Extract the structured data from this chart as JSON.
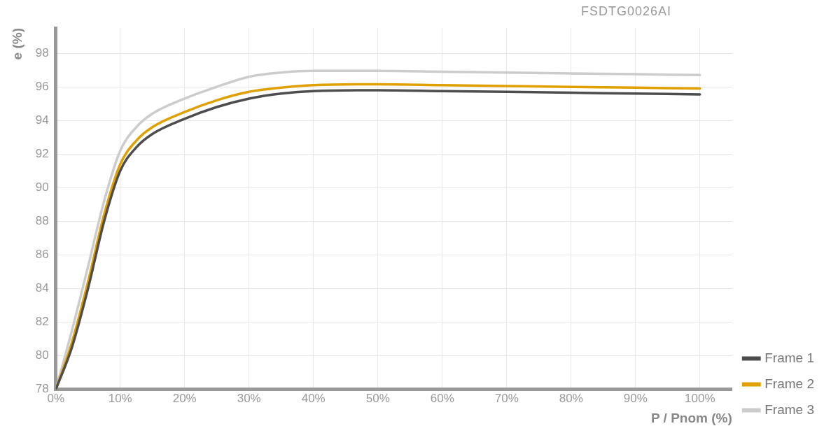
{
  "chart_data": {
    "type": "line",
    "xlabel": "P / Pnom (%)",
    "ylabel": "e (%)",
    "annotations": [
      "FSDTG0026AI"
    ],
    "xlim": [
      0,
      105
    ],
    "ylim": [
      78,
      99.5
    ],
    "xticks": [
      {
        "value": 0,
        "label": "0%"
      },
      {
        "value": 10,
        "label": "10%"
      },
      {
        "value": 20,
        "label": "20%"
      },
      {
        "value": 30,
        "label": "30%"
      },
      {
        "value": 40,
        "label": "40%"
      },
      {
        "value": 50,
        "label": "50%"
      },
      {
        "value": 60,
        "label": "60%"
      },
      {
        "value": 70,
        "label": "70%"
      },
      {
        "value": 80,
        "label": "80%"
      },
      {
        "value": 90,
        "label": "90%"
      },
      {
        "value": 100,
        "label": "100%"
      }
    ],
    "yticks": [
      78,
      80,
      82,
      84,
      86,
      88,
      90,
      92,
      94,
      96,
      98
    ],
    "grid": true,
    "legend": "right",
    "marker": "none",
    "line_style": "solid",
    "series": [
      {
        "name": "Frame 1",
        "color": "#4d4d4f",
        "x": [
          0,
          2.5,
          5,
          7.5,
          10,
          12.5,
          15,
          20,
          25,
          30,
          35,
          40,
          50,
          60,
          70,
          80,
          90,
          100
        ],
        "values": [
          78,
          80.5,
          84,
          88,
          91,
          92.4,
          93.2,
          94.1,
          94.8,
          95.3,
          95.6,
          95.75,
          95.8,
          95.75,
          95.7,
          95.65,
          95.6,
          95.55
        ]
      },
      {
        "name": "Frame 2",
        "color": "#e0a100",
        "x": [
          0,
          2.5,
          5,
          7.5,
          10,
          12.5,
          15,
          20,
          25,
          30,
          35,
          40,
          50,
          60,
          70,
          80,
          90,
          100
        ],
        "values": [
          78,
          80.8,
          84.4,
          88.4,
          91.4,
          92.8,
          93.6,
          94.5,
          95.2,
          95.7,
          95.95,
          96.1,
          96.15,
          96.1,
          96.05,
          96,
          95.95,
          95.9
        ]
      },
      {
        "name": "Frame 3",
        "color": "#cccccc",
        "x": [
          0,
          2.5,
          5,
          7.5,
          10,
          12.5,
          15,
          20,
          25,
          30,
          35,
          40,
          50,
          60,
          70,
          80,
          90,
          100
        ],
        "values": [
          78,
          81.5,
          85.3,
          89.2,
          92.2,
          93.6,
          94.4,
          95.3,
          96,
          96.6,
          96.85,
          96.95,
          96.95,
          96.9,
          96.85,
          96.8,
          96.75,
          96.7
        ]
      }
    ]
  }
}
